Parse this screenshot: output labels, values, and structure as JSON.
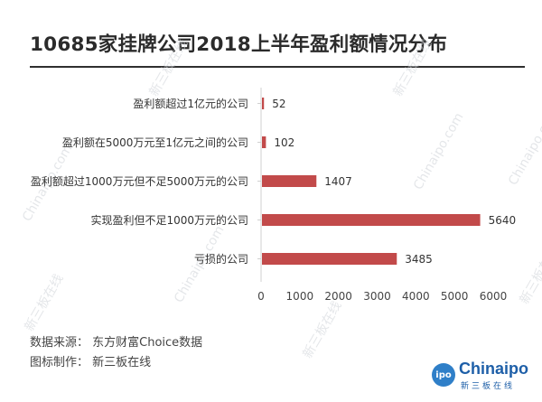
{
  "title": "10685家挂牌公司2018上半年盈利额情况分布",
  "footer": {
    "source": "数据来源：  东方财富Choice数据",
    "maker": "图标制作：  新三板在线"
  },
  "watermark": {
    "lines": [
      "Chinaipo.com",
      "新三板在线"
    ]
  },
  "logo": {
    "badge": "ipo",
    "name": "Chinaipo",
    "sub": "新三板在线"
  },
  "colors": {
    "bar": "#c24a4a",
    "axis": "#d0d0d0",
    "title_rule": "#2f2f2f"
  },
  "chart_data": {
    "type": "bar",
    "orientation": "horizontal",
    "categories": [
      "盈利额超过1亿元的公司",
      "盈利额在5000万元至1亿元之间的公司",
      "盈利额超过1000万元但不足5000万元的公司",
      "实现盈利但不足1000万元的公司",
      "亏损的公司"
    ],
    "values": [
      52,
      102,
      1407,
      5640,
      3485
    ],
    "data_labels": [
      "52",
      "102",
      "1407",
      "5640",
      "3485"
    ],
    "xlim": [
      0,
      6000
    ],
    "xticks": [
      0,
      1000,
      2000,
      3000,
      4000,
      5000,
      6000
    ],
    "grid": false,
    "legend": "none"
  }
}
